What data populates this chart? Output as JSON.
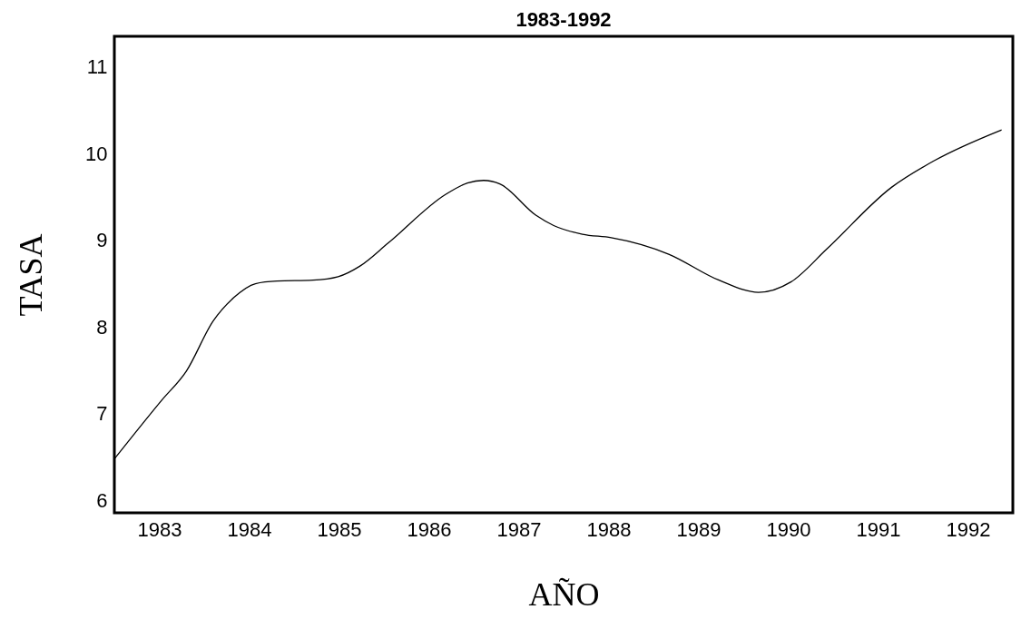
{
  "chart_data": {
    "type": "line",
    "title": "1983-1992",
    "xlabel": "AÑO",
    "ylabel": "TASA",
    "xlim": [
      1982.5,
      1992.5
    ],
    "ylim": [
      5.86,
      11.35
    ],
    "xticks": [
      1983,
      1984,
      1985,
      1986,
      1987,
      1988,
      1989,
      1990,
      1991,
      1992
    ],
    "yticks": [
      6,
      7,
      8,
      9,
      10,
      11
    ],
    "grid": false,
    "marker": "none",
    "line_style": "solid",
    "series": [
      {
        "color": "#000000",
        "x": [
          1982.5,
          1983.03,
          1983.3,
          1983.6,
          1983.83,
          1984.07,
          1984.31,
          1984.71,
          1984.99,
          1985.23,
          1985.55,
          1986.19,
          1986.43,
          1986.61,
          1986.79,
          1987.19,
          1987.39,
          1987.71,
          1988.03,
          1988.67,
          1989.23,
          1989.67,
          1990.03,
          1990.43,
          1991.15,
          1991.63,
          1992.37
        ],
        "values": [
          6.48,
          7.16,
          7.49,
          8.07,
          8.34,
          8.5,
          8.53,
          8.54,
          8.58,
          8.7,
          8.97,
          9.53,
          9.66,
          9.69,
          9.65,
          9.29,
          9.17,
          9.07,
          9.03,
          8.84,
          8.54,
          8.4,
          8.52,
          8.9,
          9.61,
          9.92,
          10.27
        ]
      }
    ]
  }
}
